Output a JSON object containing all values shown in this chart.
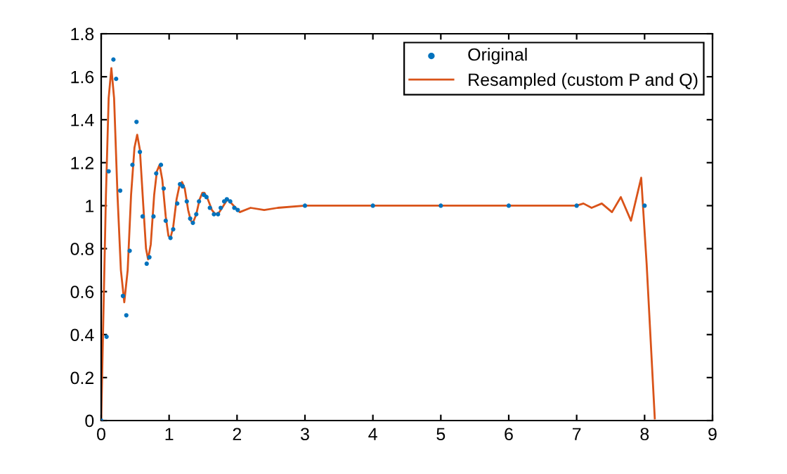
{
  "chart_data": {
    "type": "line",
    "xlim": [
      0,
      9
    ],
    "ylim": [
      0,
      1.8
    ],
    "xticks": [
      0,
      1,
      2,
      3,
      4,
      5,
      6,
      7,
      8,
      9
    ],
    "yticks": [
      0,
      0.2,
      0.4,
      0.6,
      0.8,
      1,
      1.2,
      1.4,
      1.6,
      1.8
    ],
    "grid": false,
    "legend": "top right",
    "series": [
      {
        "name": "Original",
        "type": "scatter",
        "marker": "circle",
        "color": "#0072bd",
        "x": [
          0,
          0.08,
          0.11,
          0.18,
          0.22,
          0.28,
          0.32,
          0.37,
          0.42,
          0.46,
          0.52,
          0.57,
          0.61,
          0.67,
          0.71,
          0.77,
          0.81,
          0.88,
          0.92,
          0.95,
          1.02,
          1.06,
          1.12,
          1.16,
          1.2,
          1.26,
          1.31,
          1.35,
          1.4,
          1.44,
          1.51,
          1.55,
          1.6,
          1.66,
          1.72,
          1.76,
          1.81,
          1.85,
          1.9,
          1.96,
          2.01,
          3,
          4,
          5,
          6,
          7,
          8
        ],
        "values": [
          0,
          0.39,
          1.16,
          1.68,
          1.59,
          1.07,
          0.58,
          0.49,
          0.79,
          1.19,
          1.39,
          1.25,
          0.95,
          0.73,
          0.76,
          0.95,
          1.15,
          1.19,
          1.08,
          0.93,
          0.85,
          0.89,
          1.01,
          1.1,
          1.09,
          1.02,
          0.94,
          0.92,
          0.96,
          1.02,
          1.05,
          1.04,
          0.99,
          0.96,
          0.96,
          0.99,
          1.02,
          1.03,
          1.02,
          0.99,
          0.98,
          1,
          1,
          1,
          1,
          1,
          1
        ]
      },
      {
        "name": "Resampled (custom P and Q)",
        "marker": "none",
        "line_style": "solid",
        "color": "#d95319",
        "x": [
          0,
          0.03,
          0.07,
          0.11,
          0.15,
          0.19,
          0.24,
          0.29,
          0.34,
          0.39,
          0.44,
          0.49,
          0.53,
          0.57,
          0.62,
          0.66,
          0.69,
          0.73,
          0.78,
          0.82,
          0.86,
          0.9,
          0.95,
          0.99,
          1.02,
          1.06,
          1.11,
          1.15,
          1.19,
          1.23,
          1.28,
          1.32,
          1.35,
          1.4,
          1.45,
          1.49,
          1.52,
          1.57,
          1.63,
          1.68,
          1.74,
          1.8,
          1.86,
          1.95,
          2.04,
          2.2,
          2.4,
          2.6,
          3,
          4,
          5,
          6,
          7,
          7.1,
          7.22,
          7.37,
          7.52,
          7.65,
          7.8,
          7.95,
          8.03,
          8.15
        ],
        "values": [
          0,
          0.45,
          1.05,
          1.5,
          1.64,
          1.5,
          1.05,
          0.7,
          0.55,
          0.7,
          1.05,
          1.27,
          1.33,
          1.26,
          1.0,
          0.8,
          0.75,
          0.82,
          1.05,
          1.16,
          1.19,
          1.12,
          0.95,
          0.86,
          0.85,
          0.9,
          1.03,
          1.09,
          1.11,
          1.08,
          0.98,
          0.93,
          0.92,
          0.96,
          1.03,
          1.06,
          1.06,
          1.03,
          0.98,
          0.96,
          0.97,
          1.0,
          1.03,
          1.0,
          0.97,
          0.99,
          0.98,
          0.99,
          1,
          1,
          1,
          1,
          1,
          1.01,
          0.99,
          1.01,
          0.97,
          1.04,
          0.93,
          1.13,
          0.73,
          0.01
        ]
      }
    ]
  }
}
